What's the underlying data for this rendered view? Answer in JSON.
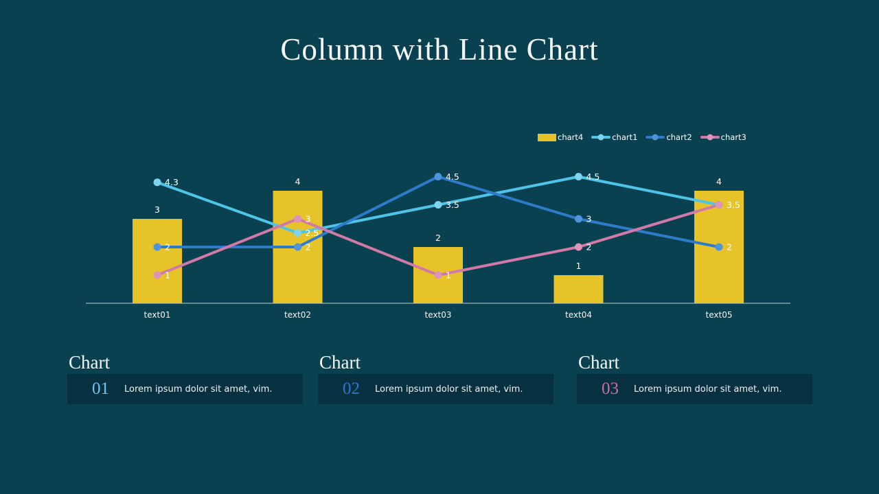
{
  "title": "Column with Line Chart",
  "colors": {
    "background": "#0a4150",
    "card_box": "#073040",
    "axis_line": "#c8ced1",
    "label_text": "#ffffff"
  },
  "chart_data": {
    "type": "bar",
    "subtype": "column-with-lines-combo",
    "title": "Column with Line Chart",
    "categories": [
      "text01",
      "text02",
      "text03",
      "text04",
      "text05"
    ],
    "series": [
      {
        "name": "chart4",
        "type": "bar",
        "color": "#e7c32a",
        "values": [
          3,
          4,
          2,
          1,
          4
        ]
      },
      {
        "name": "chart1",
        "type": "line",
        "color": "#4ec4e8",
        "marker_color": "#7ed3ef",
        "values": [
          4.3,
          2.5,
          3.5,
          4.5,
          3.5
        ]
      },
      {
        "name": "chart2",
        "type": "line",
        "color": "#2e7cc9",
        "marker_color": "#4e95dc",
        "values": [
          2,
          2,
          4.5,
          3,
          2
        ]
      },
      {
        "name": "chart3",
        "type": "line",
        "color": "#d179a7",
        "marker_color": "#de93bb",
        "values": [
          1,
          3,
          1,
          2,
          3.5
        ]
      }
    ],
    "ylim": [
      0,
      5
    ],
    "xlabel": "",
    "ylabel": "",
    "grid": false,
    "value_labels": true,
    "legend_position": "top-right",
    "legend_entries": [
      "chart4",
      "chart1",
      "chart2",
      "chart3"
    ]
  },
  "cards": [
    {
      "title": "Chart",
      "number": "01",
      "text": "Lorem ipsum dolor sit amet, vim.",
      "accent": "#6fc8ea"
    },
    {
      "title": "Chart",
      "number": "02",
      "text": "Lorem ipsum dolor sit amet, vim.",
      "accent": "#3673cb"
    },
    {
      "title": "Chart",
      "number": "03",
      "text": "Lorem ipsum dolor sit amet, vim.",
      "accent": "#cb6fa0"
    }
  ]
}
